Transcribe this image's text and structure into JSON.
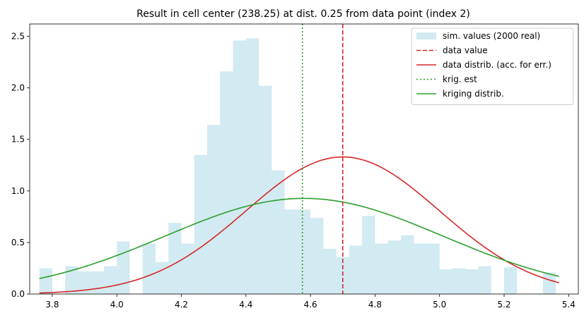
{
  "chart_data": {
    "type": "histogram",
    "title": "Result in cell center (238.25) at dist. 0.25 from data point (index 2)",
    "xlabel": "",
    "ylabel": "",
    "xlim": [
      3.73,
      5.43
    ],
    "ylim": [
      0,
      2.62
    ],
    "grid": false,
    "legend_position": "top-right",
    "x_ticks": [
      "3.8",
      "4.0",
      "4.2",
      "4.4",
      "4.6",
      "4.8",
      "5.0",
      "5.2",
      "5.4"
    ],
    "y_ticks": [
      "0.0",
      "0.5",
      "1.0",
      "1.5",
      "2.0",
      "2.5"
    ],
    "histogram": {
      "name": "sim. values (2000 real)",
      "color": "#add8e6",
      "bins": [
        {
          "x0": 3.76,
          "x1": 3.8,
          "h": 0.25
        },
        {
          "x0": 3.8,
          "x1": 3.84,
          "h": 0.0
        },
        {
          "x0": 3.84,
          "x1": 3.88,
          "h": 0.27
        },
        {
          "x0": 3.88,
          "x1": 3.92,
          "h": 0.22
        },
        {
          "x0": 3.92,
          "x1": 3.96,
          "h": 0.22
        },
        {
          "x0": 3.96,
          "x1": 4.0,
          "h": 0.27
        },
        {
          "x0": 4.0,
          "x1": 4.04,
          "h": 0.51
        },
        {
          "x0": 4.04,
          "x1": 4.08,
          "h": 0.0
        },
        {
          "x0": 4.08,
          "x1": 4.12,
          "h": 0.49
        },
        {
          "x0": 4.12,
          "x1": 4.16,
          "h": 0.31
        },
        {
          "x0": 4.16,
          "x1": 4.2,
          "h": 0.69
        },
        {
          "x0": 4.2,
          "x1": 4.24,
          "h": 0.49
        },
        {
          "x0": 4.24,
          "x1": 4.28,
          "h": 1.35
        },
        {
          "x0": 4.28,
          "x1": 4.32,
          "h": 1.64
        },
        {
          "x0": 4.32,
          "x1": 4.36,
          "h": 2.16
        },
        {
          "x0": 4.36,
          "x1": 4.4,
          "h": 2.46
        },
        {
          "x0": 4.4,
          "x1": 4.44,
          "h": 2.48
        },
        {
          "x0": 4.44,
          "x1": 4.48,
          "h": 2.02
        },
        {
          "x0": 4.48,
          "x1": 4.52,
          "h": 1.2
        },
        {
          "x0": 4.52,
          "x1": 4.56,
          "h": 0.82
        },
        {
          "x0": 4.56,
          "x1": 4.6,
          "h": 0.82
        },
        {
          "x0": 4.6,
          "x1": 4.64,
          "h": 0.74
        },
        {
          "x0": 4.64,
          "x1": 4.68,
          "h": 0.44
        },
        {
          "x0": 4.68,
          "x1": 4.72,
          "h": 0.36
        },
        {
          "x0": 4.72,
          "x1": 4.76,
          "h": 0.47
        },
        {
          "x0": 4.76,
          "x1": 4.8,
          "h": 0.76
        },
        {
          "x0": 4.8,
          "x1": 4.84,
          "h": 0.49
        },
        {
          "x0": 4.84,
          "x1": 4.88,
          "h": 0.52
        },
        {
          "x0": 4.88,
          "x1": 4.92,
          "h": 0.57
        },
        {
          "x0": 4.92,
          "x1": 4.96,
          "h": 0.49
        },
        {
          "x0": 4.96,
          "x1": 5.0,
          "h": 0.49
        },
        {
          "x0": 5.0,
          "x1": 5.04,
          "h": 0.24
        },
        {
          "x0": 5.04,
          "x1": 5.08,
          "h": 0.25
        },
        {
          "x0": 5.08,
          "x1": 5.12,
          "h": 0.24
        },
        {
          "x0": 5.12,
          "x1": 5.16,
          "h": 0.27
        },
        {
          "x0": 5.16,
          "x1": 5.2,
          "h": 0.0
        },
        {
          "x0": 5.2,
          "x1": 5.24,
          "h": 0.26
        },
        {
          "x0": 5.24,
          "x1": 5.28,
          "h": 0.0
        },
        {
          "x0": 5.28,
          "x1": 5.32,
          "h": 0.0
        },
        {
          "x0": 5.32,
          "x1": 5.36,
          "h": 0.21
        }
      ]
    },
    "vlines": [
      {
        "name": "data value",
        "x": 4.7,
        "color": "#d62728",
        "style": "dashed"
      },
      {
        "name": "krig. est",
        "x": 4.575,
        "color": "#2ca02c",
        "style": "dotted"
      }
    ],
    "curves": [
      {
        "name": "data distrib. (acc. for err.)",
        "color": "#d62728",
        "type": "normal",
        "mean": 4.7,
        "sd": 0.3,
        "x_range": [
          3.76,
          5.37
        ]
      },
      {
        "name": "kriging distrib.",
        "color": "#2ca02c",
        "type": "normal",
        "mean": 4.58,
        "sd": 0.43,
        "x_range": [
          3.76,
          5.37
        ]
      }
    ],
    "legend": [
      {
        "label": "sim. values (2000 real)",
        "kind": "patch",
        "color": "#add8e6"
      },
      {
        "label": "data value",
        "kind": "dashed",
        "color": "#d62728"
      },
      {
        "label": "data distrib. (acc. for err.)",
        "kind": "solid",
        "color": "#d62728"
      },
      {
        "label": "krig. est",
        "kind": "dotted",
        "color": "#2ca02c"
      },
      {
        "label": "kriging distrib.",
        "kind": "solid",
        "color": "#2ca02c"
      }
    ]
  }
}
